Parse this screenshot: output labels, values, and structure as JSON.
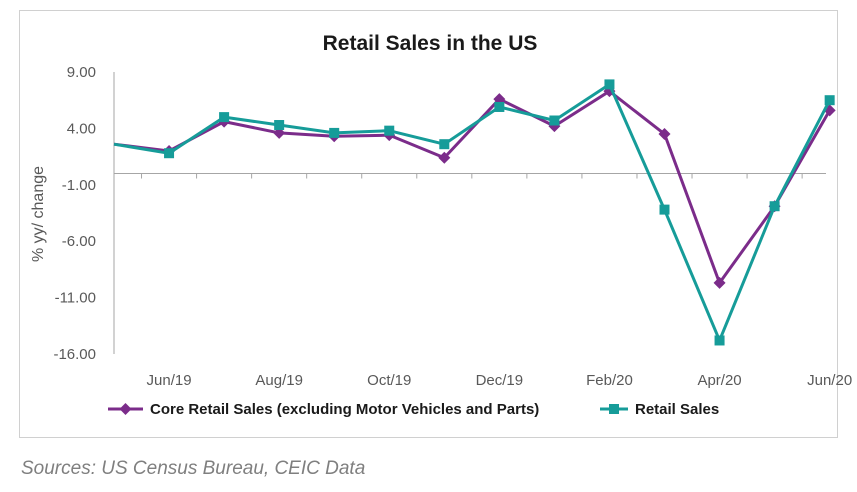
{
  "colors": {
    "core": "#7B2C8A",
    "retail": "#169C99",
    "axis": "#a6a6a6",
    "text": "#595959"
  },
  "chart_data": {
    "type": "line",
    "title": "Retail Sales in the US",
    "xlabel": "",
    "ylabel": "% yy/ change",
    "ylim": [
      -16,
      9
    ],
    "yticks": [
      9.0,
      4.0,
      -1.0,
      -6.0,
      -11.0,
      -16.0
    ],
    "ytick_labels": [
      "9.00",
      "4.00",
      "-1.00",
      "-6.00",
      "-11.00",
      "-16.00"
    ],
    "x": [
      "May/19",
      "Jun/19",
      "Jul/19",
      "Aug/19",
      "Sep/19",
      "Oct/19",
      "Nov/19",
      "Dec/19",
      "Jan/20",
      "Feb/20",
      "Mar/20",
      "Apr/20",
      "May/20",
      "Jun/20"
    ],
    "xtick_labels": [
      "Jun/19",
      "Aug/19",
      "Oct/19",
      "Dec/19",
      "Feb/20",
      "Apr/20",
      "Jun/20"
    ],
    "grid": false,
    "legend_position": "bottom",
    "series": [
      {
        "name": "Core Retail Sales (excluding Motor Vehicles and Parts)",
        "color_key": "core",
        "marker": "diamond",
        "values": [
          2.6,
          2.0,
          4.6,
          3.6,
          3.3,
          3.4,
          1.4,
          6.6,
          4.2,
          7.3,
          3.5,
          -9.7,
          -2.9,
          5.6
        ]
      },
      {
        "name": "Retail Sales",
        "color_key": "retail",
        "marker": "square",
        "values": [
          2.6,
          1.8,
          5.0,
          4.3,
          3.6,
          3.8,
          2.6,
          5.9,
          4.7,
          7.9,
          -3.2,
          -14.8,
          -2.9,
          6.5
        ]
      }
    ]
  },
  "source": "Sources: US Census Bureau, CEIC Data"
}
